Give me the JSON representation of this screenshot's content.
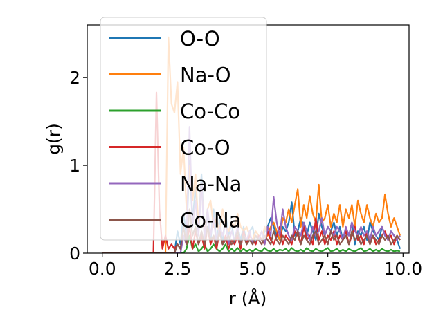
{
  "chart_data": {
    "type": "line",
    "title": "",
    "xlabel": "r (Å)",
    "ylabel": "g(r)",
    "xlim": [
      -0.5,
      10.2
    ],
    "ylim": [
      0,
      2.6
    ],
    "xticks": [
      0.0,
      2.5,
      5.0,
      7.5,
      10.0
    ],
    "xtick_labels": [
      "0.0",
      "2.5",
      "5.0",
      "7.5",
      "10.0"
    ],
    "yticks": [
      0,
      1,
      2
    ],
    "ytick_labels": [
      "0",
      "1",
      "2"
    ],
    "legend_position": "upper-left",
    "grid": false,
    "x": [
      0.0,
      0.2,
      0.4,
      0.6,
      0.8,
      1.0,
      1.2,
      1.4,
      1.6,
      1.7,
      1.8,
      1.9,
      2.0,
      2.1,
      2.2,
      2.3,
      2.4,
      2.5,
      2.6,
      2.7,
      2.8,
      2.9,
      3.0,
      3.1,
      3.2,
      3.3,
      3.4,
      3.5,
      3.6,
      3.7,
      3.8,
      3.9,
      4.0,
      4.1,
      4.2,
      4.3,
      4.4,
      4.5,
      4.6,
      4.7,
      4.8,
      4.9,
      5.0,
      5.1,
      5.2,
      5.3,
      5.4,
      5.5,
      5.6,
      5.7,
      5.8,
      5.9,
      6.0,
      6.1,
      6.2,
      6.3,
      6.4,
      6.5,
      6.6,
      6.7,
      6.8,
      6.9,
      7.0,
      7.1,
      7.2,
      7.3,
      7.4,
      7.5,
      7.6,
      7.7,
      7.8,
      7.9,
      8.0,
      8.1,
      8.2,
      8.3,
      8.4,
      8.5,
      8.6,
      8.7,
      8.8,
      8.9,
      9.0,
      9.1,
      9.2,
      9.3,
      9.4,
      9.5,
      9.6,
      9.7,
      9.8,
      9.9
    ],
    "series": [
      {
        "name": "O-O",
        "color": "#1f77b4",
        "values": [
          0,
          0,
          0,
          0,
          0,
          0,
          0,
          0,
          0,
          0,
          0,
          0,
          0,
          0,
          0,
          0,
          0,
          0.25,
          0.1,
          0.45,
          0.2,
          1.05,
          0.35,
          0.75,
          0.3,
          0.9,
          0.2,
          0.45,
          0.15,
          0.5,
          0.1,
          0.4,
          0.1,
          0.45,
          0.2,
          0.35,
          0.1,
          0.3,
          0.15,
          0.3,
          0.1,
          0.25,
          0.3,
          0.1,
          0.2,
          0.15,
          0.25,
          0.3,
          0.4,
          0.3,
          0.2,
          0.15,
          0.3,
          0.25,
          0.35,
          0.58,
          0.2,
          0.25,
          0.4,
          0.3,
          0.2,
          0.35,
          0.25,
          0.15,
          0.45,
          0.3,
          0.2,
          0.3,
          0.25,
          0.35,
          0.2,
          0.3,
          0.15,
          0.25,
          0.2,
          0.35,
          0.1,
          0.25,
          0.2,
          0.3,
          0.15,
          0.35,
          0.25,
          0.2,
          0.15,
          0.3,
          0.2,
          0.15,
          0.25,
          0.2,
          0.15,
          0.05
        ]
      },
      {
        "name": "Na-O",
        "color": "#ff7f0e",
        "values": [
          0,
          0,
          0,
          0,
          0,
          0,
          0,
          0,
          0,
          0,
          0,
          0,
          0,
          0,
          2.46,
          1.7,
          1.6,
          1.95,
          0.9,
          1.2,
          0.5,
          1.0,
          0.6,
          0.9,
          0.3,
          0.8,
          0.2,
          0.5,
          0.6,
          0.3,
          0.4,
          0.2,
          0.5,
          0.3,
          0.25,
          0.35,
          0.3,
          0.45,
          0.3,
          0.25,
          0.3,
          0.2,
          0.15,
          0.25,
          0.2,
          0.15,
          0.3,
          0.2,
          0.3,
          0.35,
          0.25,
          0.15,
          0.4,
          0.35,
          0.5,
          0.35,
          0.55,
          0.73,
          0.3,
          0.55,
          0.4,
          0.65,
          0.45,
          0.35,
          0.78,
          0.35,
          0.4,
          0.55,
          0.3,
          0.45,
          0.35,
          0.55,
          0.3,
          0.5,
          0.4,
          0.55,
          0.3,
          0.6,
          0.45,
          0.35,
          0.55,
          0.4,
          0.3,
          0.45,
          0.35,
          0.4,
          0.67,
          0.45,
          0.3,
          0.4,
          0.3,
          0.2
        ]
      },
      {
        "name": "Co-Co",
        "color": "#2ca02c",
        "values": [
          0,
          0,
          0,
          0,
          0,
          0,
          0,
          0,
          0,
          0,
          0,
          0,
          0,
          0,
          0,
          0,
          0,
          0,
          0,
          0,
          0.05,
          0.2,
          0.05,
          0.1,
          0.02,
          0.05,
          0.1,
          0.02,
          0.05,
          0.1,
          0.05,
          0.02,
          0.05,
          0.1,
          0.02,
          0.05,
          0.02,
          0.06,
          0.02,
          0.05,
          0.02,
          0.04,
          0.02,
          0.05,
          0.03,
          0.02,
          0.06,
          0.03,
          0.02,
          0.05,
          0.02,
          0.04,
          0.03,
          0.05,
          0.02,
          0.06,
          0.03,
          0.02,
          0.04,
          0.02,
          0.06,
          0.03,
          0.02,
          0.05,
          0.03,
          0.02,
          0.04,
          0.06,
          0.02,
          0.03,
          0.05,
          0.02,
          0.04,
          0.02,
          0.05,
          0.03,
          0.02,
          0.04,
          0.06,
          0.02,
          0.03,
          0.05,
          0.02,
          0.04,
          0.02,
          0.05,
          0.03,
          0.02,
          0.04,
          0.02,
          0.03,
          0.02
        ]
      },
      {
        "name": "Co-O",
        "color": "#d62728",
        "values": [
          0,
          0,
          0,
          0,
          0,
          0,
          0,
          0,
          0,
          0,
          1.83,
          0.5,
          0.05,
          0.2,
          0.05,
          0.1,
          0.05,
          0.1,
          0.05,
          0.2,
          0.1,
          0.3,
          0.05,
          0.25,
          0.1,
          0.2,
          0.05,
          0.3,
          0.1,
          0.2,
          0.05,
          0.25,
          0.1,
          0.2,
          0.05,
          0.15,
          0.1,
          0.2,
          0.05,
          0.25,
          0.1,
          0.2,
          0.15,
          0.1,
          0.2,
          0.15,
          0.1,
          0.25,
          0.15,
          0.1,
          0.2,
          0.3,
          0.1,
          0.2,
          0.15,
          0.1,
          0.25,
          0.2,
          0.1,
          0.3,
          0.15,
          0.2,
          0.1,
          0.4,
          0.15,
          0.25,
          0.1,
          0.2,
          0.15,
          0.25,
          0.1,
          0.2,
          0.15,
          0.25,
          0.1,
          0.2,
          0.3,
          0.15,
          0.2,
          0.1,
          0.25,
          0.15,
          0.2,
          0.1,
          0.15,
          0.2,
          0.25,
          0.15,
          0.2,
          0.1,
          0.2,
          0.15
        ]
      },
      {
        "name": "Na-Na",
        "color": "#9467bd",
        "values": [
          0,
          0,
          0,
          0,
          0,
          0,
          0,
          0,
          0,
          0,
          0,
          0,
          0,
          0,
          0,
          0,
          0,
          0,
          0,
          0.2,
          0.1,
          1.44,
          0.3,
          0.6,
          0.2,
          0.8,
          0.15,
          0.5,
          0.2,
          0.4,
          0.1,
          0.3,
          0.2,
          0.35,
          0.1,
          0.25,
          0.15,
          0.3,
          0.1,
          0.2,
          0.15,
          0.25,
          0.1,
          0.2,
          0.15,
          0.25,
          0.1,
          0.3,
          0.2,
          0.64,
          0.35,
          0.2,
          0.5,
          0.3,
          0.2,
          0.15,
          0.3,
          0.25,
          0.2,
          0.35,
          0.25,
          0.15,
          0.3,
          0.2,
          0.25,
          0.4,
          0.2,
          0.3,
          0.25,
          0.2,
          0.3,
          0.25,
          0.15,
          0.3,
          0.2,
          0.35,
          0.25,
          0.2,
          0.3,
          0.2,
          0.25,
          0.15,
          0.3,
          0.2,
          0.25,
          0.3,
          0.2,
          0.15,
          0.25,
          0.2,
          0.15,
          0.2
        ]
      },
      {
        "name": "Co-Na",
        "color": "#8c564b",
        "values": [
          0,
          0,
          0,
          0,
          0,
          0,
          0,
          0,
          0,
          0,
          0,
          0,
          0,
          0,
          0,
          0,
          0,
          0.1,
          0.05,
          0.3,
          0.1,
          0.5,
          0.2,
          0.3,
          0.1,
          0.25,
          0.1,
          0.3,
          0.15,
          0.2,
          0.1,
          0.25,
          0.1,
          0.15,
          0.2,
          0.1,
          0.15,
          0.25,
          0.1,
          0.2,
          0.1,
          0.15,
          0.1,
          0.2,
          0.15,
          0.1,
          0.2,
          0.15,
          0.1,
          0.25,
          0.15,
          0.1,
          0.2,
          0.15,
          0.1,
          0.2,
          0.15,
          0.25,
          0.1,
          0.2,
          0.15,
          0.1,
          0.2,
          0.25,
          0.1,
          0.15,
          0.2,
          0.1,
          0.25,
          0.15,
          0.2,
          0.1,
          0.15,
          0.2,
          0.1,
          0.25,
          0.15,
          0.2,
          0.1,
          0.15,
          0.2,
          0.1,
          0.2,
          0.15,
          0.1,
          0.2,
          0.15,
          0.2,
          0.1,
          0.15,
          0.2,
          0.15
        ]
      }
    ]
  }
}
